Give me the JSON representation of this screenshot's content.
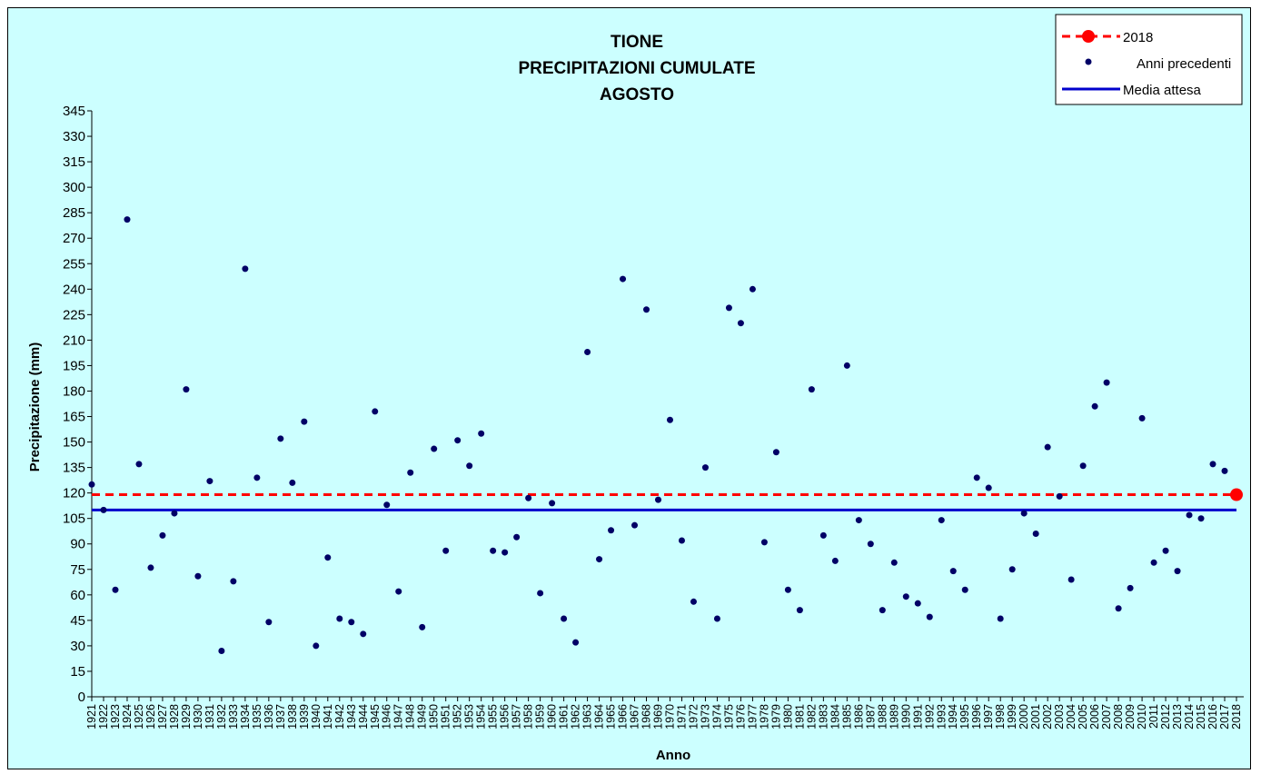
{
  "chart_data": {
    "type": "scatter",
    "title_lines": [
      "TIONE",
      "PRECIPITAZIONI CUMULATE",
      "AGOSTO"
    ],
    "xlabel": "Anno",
    "ylabel": "Precipitazione (mm)",
    "ylim": [
      0,
      345
    ],
    "y_ticks": [
      0,
      15,
      30,
      45,
      60,
      75,
      90,
      105,
      120,
      135,
      150,
      165,
      180,
      195,
      210,
      225,
      240,
      255,
      270,
      285,
      300,
      315,
      330,
      345
    ],
    "grid": false,
    "legend_position": "top-right",
    "legend": [
      "2018",
      "Anni precedenti",
      "Media attesa"
    ],
    "colors": {
      "background": "#ccffff",
      "points": "#000066",
      "current_year": "#ff0000",
      "mean_line": "#0000cc"
    },
    "series": [
      {
        "name": "Anni precedenti",
        "x": [
          1921,
          1922,
          1923,
          1924,
          1925,
          1926,
          1927,
          1928,
          1929,
          1930,
          1931,
          1932,
          1933,
          1934,
          1935,
          1936,
          1937,
          1938,
          1939,
          1940,
          1941,
          1942,
          1943,
          1944,
          1945,
          1946,
          1947,
          1948,
          1949,
          1950,
          1951,
          1952,
          1953,
          1954,
          1955,
          1956,
          1957,
          1958,
          1959,
          1960,
          1961,
          1962,
          1963,
          1964,
          1965,
          1966,
          1967,
          1968,
          1969,
          1970,
          1971,
          1972,
          1973,
          1974,
          1975,
          1976,
          1977,
          1978,
          1979,
          1980,
          1981,
          1982,
          1983,
          1984,
          1985,
          1986,
          1987,
          1988,
          1989,
          1990,
          1991,
          1992,
          1993,
          1994,
          1995,
          1996,
          1997,
          1998,
          1999,
          2000,
          2001,
          2002,
          2003,
          2004,
          2005,
          2006,
          2007,
          2008,
          2009,
          2010,
          2011,
          2012,
          2013,
          2014,
          2015,
          2016,
          2017
        ],
        "y": [
          125,
          110,
          63,
          281,
          137,
          76,
          95,
          108,
          181,
          71,
          127,
          27,
          68,
          252,
          129,
          44,
          152,
          126,
          162,
          30,
          82,
          46,
          44,
          37,
          168,
          113,
          62,
          132,
          41,
          146,
          86,
          151,
          136,
          155,
          86,
          85,
          94,
          117,
          61,
          114,
          46,
          32,
          203,
          81,
          98,
          246,
          101,
          228,
          116,
          163,
          92,
          56,
          135,
          46,
          229,
          220,
          240,
          91,
          144,
          63,
          51,
          181,
          95,
          80,
          195,
          104,
          90,
          51,
          79,
          59,
          55,
          47,
          104,
          74,
          63,
          129,
          123,
          46,
          75,
          108,
          96,
          147,
          118,
          69,
          136,
          171,
          185,
          52,
          64,
          164,
          79,
          86,
          74,
          107,
          105,
          137,
          133
        ]
      },
      {
        "name": "2018",
        "x": [
          2018
        ],
        "y": [
          119
        ]
      },
      {
        "name": "Media attesa",
        "x": [
          1921,
          2018
        ],
        "y": [
          110,
          110
        ]
      }
    ],
    "reference_line_2018": 119
  }
}
